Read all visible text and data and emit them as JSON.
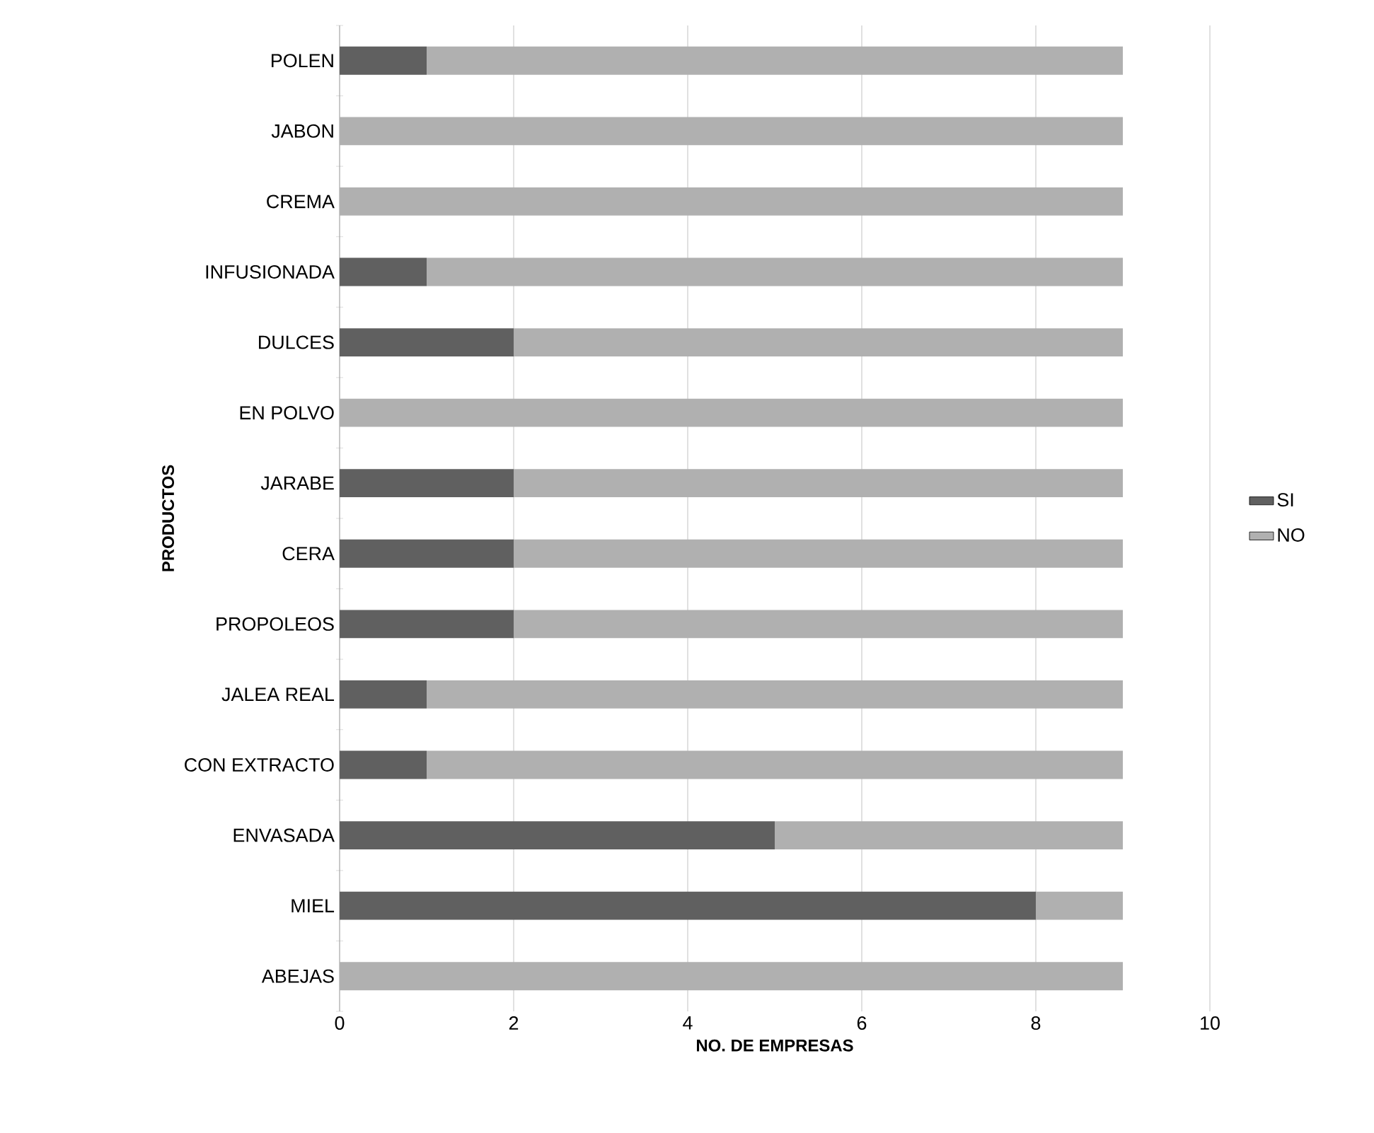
{
  "chart_data": {
    "type": "bar",
    "orientation": "horizontal",
    "stacked": true,
    "categories": [
      "POLEN",
      "JABON",
      "CREMA",
      "INFUSIONADA",
      "DULCES",
      "EN POLVO",
      "JARABE",
      "CERA",
      "PROPOLEOS",
      "JALEA REAL",
      "CON EXTRACTO",
      "ENVASADA",
      "MIEL",
      "ABEJAS"
    ],
    "series": [
      {
        "name": "SI",
        "color": "#606060",
        "values": [
          1,
          0,
          0,
          1,
          2,
          0,
          2,
          2,
          2,
          1,
          1,
          5,
          8,
          0
        ]
      },
      {
        "name": "NO",
        "color": "#b0b0b0",
        "values": [
          8,
          9,
          9,
          8,
          7,
          9,
          7,
          7,
          7,
          8,
          8,
          4,
          1,
          9
        ]
      }
    ],
    "xlim": [
      0,
      10
    ],
    "xticks": [
      0,
      2,
      4,
      6,
      8,
      10
    ],
    "xlabel": "NO. DE EMPRESAS",
    "ylabel": "PRODUCTOS",
    "grid": "x",
    "legend": "right"
  }
}
